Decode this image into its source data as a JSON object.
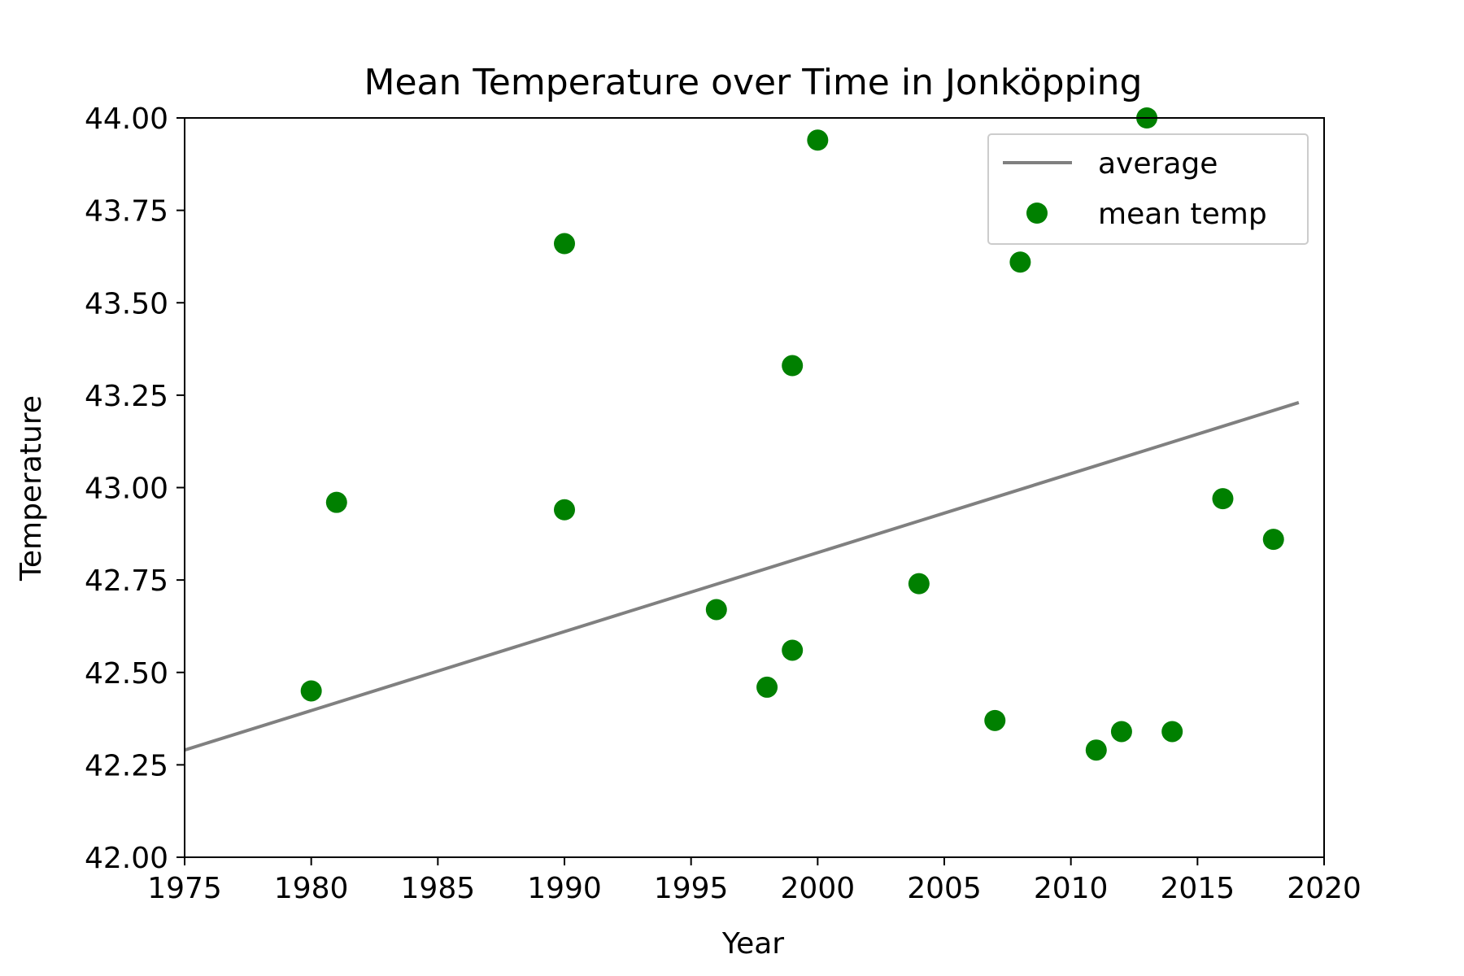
{
  "chart_data": {
    "type": "scatter",
    "title": "Mean Temperature over Time in Jonköpping",
    "xlabel": "Year",
    "ylabel": "Temperature",
    "xlim": [
      1975,
      2020
    ],
    "ylim": [
      42.0,
      44.0
    ],
    "x_ticks": [
      "1975",
      "1980",
      "1985",
      "1990",
      "1995",
      "2000",
      "2005",
      "2010",
      "2015",
      "2020"
    ],
    "y_ticks": [
      "42.00",
      "42.25",
      "42.50",
      "42.75",
      "43.00",
      "43.25",
      "43.50",
      "43.75",
      "44.00"
    ],
    "grid": false,
    "legend_position": "top-right",
    "series": [
      {
        "name": "average",
        "kind": "line",
        "color": "#808080",
        "x": [
          1975,
          2019
        ],
        "y": [
          42.29,
          43.23
        ]
      },
      {
        "name": "mean temp",
        "kind": "scatter",
        "color": "#008000",
        "x": [
          1980,
          1981,
          1990,
          1990,
          1996,
          1998,
          1999,
          1999,
          2000,
          2004,
          2007,
          2008,
          2011,
          2012,
          2013,
          2014,
          2016,
          2018
        ],
        "y": [
          42.45,
          42.96,
          43.66,
          42.94,
          42.67,
          42.46,
          43.33,
          42.56,
          43.94,
          42.74,
          42.37,
          43.61,
          42.29,
          42.34,
          44.0,
          42.34,
          42.97,
          42.86
        ]
      }
    ]
  }
}
